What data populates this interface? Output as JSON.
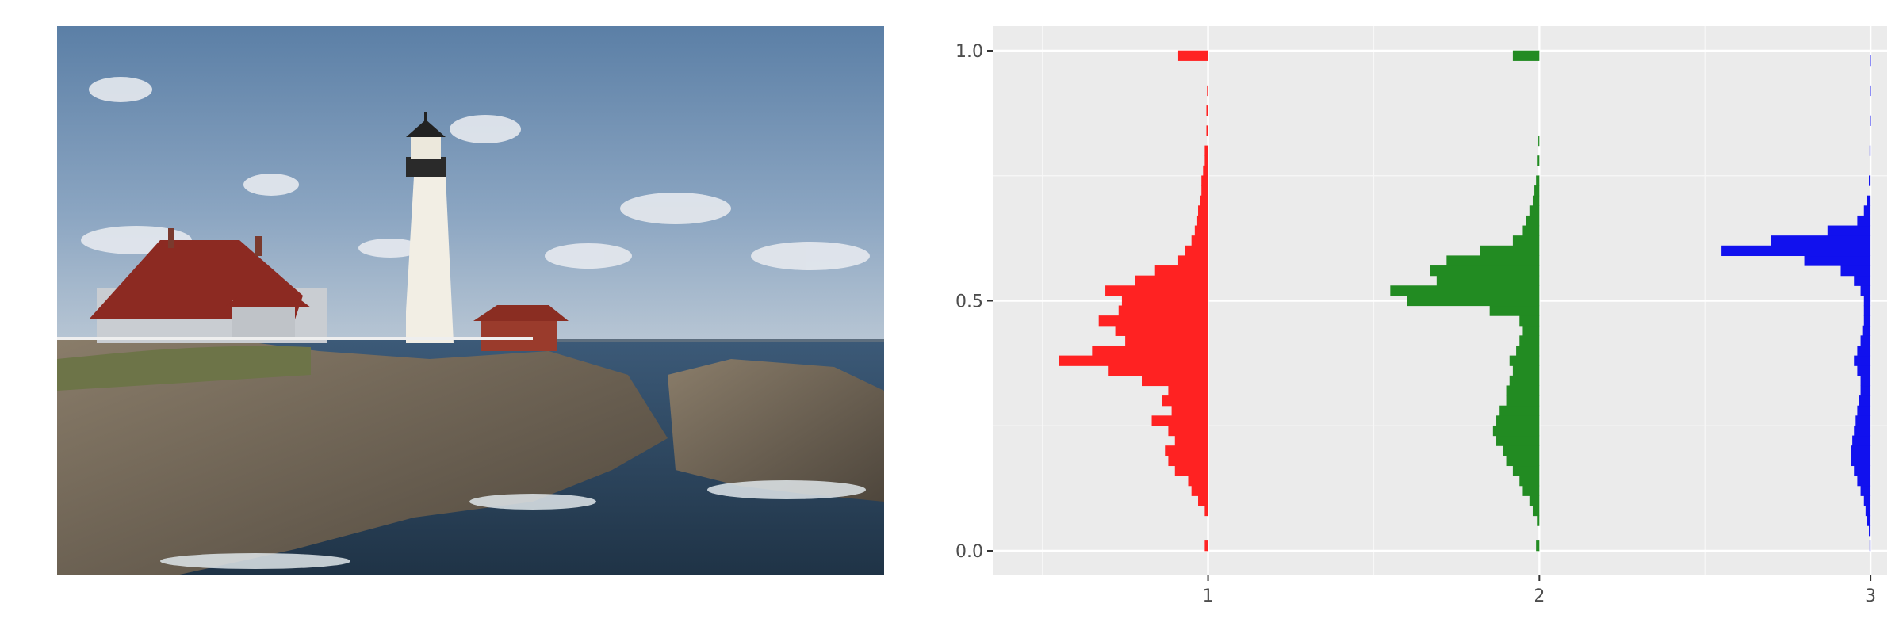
{
  "photo": {
    "subject": "Lighthouse on a rocky coast with red-roofed keeper's house, sky with clouds and sea"
  },
  "chart_data": {
    "type": "bar",
    "orientation": "horizontal",
    "description": "Per-channel intensity histograms (R, G, B) drawn as horizontal bars pointing left from channel baselines 1, 2, 3",
    "x_ticks": [
      "1",
      "2",
      "3"
    ],
    "y_ticks": [
      "0.0",
      "0.5",
      "1.0"
    ],
    "ylim": [
      0,
      1
    ],
    "grid": true,
    "panel_background": "#ebebeb",
    "series": [
      {
        "channel": 1,
        "color": "#ff2222",
        "bins": [
          {
            "y": 0.01,
            "len": 0.01
          },
          {
            "y": 0.08,
            "len": 0.01
          },
          {
            "y": 0.1,
            "len": 0.03
          },
          {
            "y": 0.12,
            "len": 0.05
          },
          {
            "y": 0.14,
            "len": 0.06
          },
          {
            "y": 0.16,
            "len": 0.1
          },
          {
            "y": 0.18,
            "len": 0.12
          },
          {
            "y": 0.2,
            "len": 0.13
          },
          {
            "y": 0.22,
            "len": 0.1
          },
          {
            "y": 0.24,
            "len": 0.12
          },
          {
            "y": 0.26,
            "len": 0.17
          },
          {
            "y": 0.28,
            "len": 0.11
          },
          {
            "y": 0.3,
            "len": 0.14
          },
          {
            "y": 0.32,
            "len": 0.12
          },
          {
            "y": 0.34,
            "len": 0.2
          },
          {
            "y": 0.36,
            "len": 0.3
          },
          {
            "y": 0.38,
            "len": 0.45
          },
          {
            "y": 0.4,
            "len": 0.35
          },
          {
            "y": 0.42,
            "len": 0.25
          },
          {
            "y": 0.44,
            "len": 0.28
          },
          {
            "y": 0.46,
            "len": 0.33
          },
          {
            "y": 0.48,
            "len": 0.27
          },
          {
            "y": 0.5,
            "len": 0.26
          },
          {
            "y": 0.52,
            "len": 0.31
          },
          {
            "y": 0.54,
            "len": 0.22
          },
          {
            "y": 0.56,
            "len": 0.16
          },
          {
            "y": 0.58,
            "len": 0.09
          },
          {
            "y": 0.6,
            "len": 0.07
          },
          {
            "y": 0.62,
            "len": 0.05
          },
          {
            "y": 0.64,
            "len": 0.04
          },
          {
            "y": 0.66,
            "len": 0.035
          },
          {
            "y": 0.68,
            "len": 0.03
          },
          {
            "y": 0.7,
            "len": 0.025
          },
          {
            "y": 0.72,
            "len": 0.02
          },
          {
            "y": 0.74,
            "len": 0.02
          },
          {
            "y": 0.76,
            "len": 0.015
          },
          {
            "y": 0.78,
            "len": 0.01
          },
          {
            "y": 0.8,
            "len": 0.01
          },
          {
            "y": 0.84,
            "len": 0.005
          },
          {
            "y": 0.88,
            "len": 0.005
          },
          {
            "y": 0.92,
            "len": 0.003
          },
          {
            "y": 0.99,
            "len": 0.09
          }
        ]
      },
      {
        "channel": 2,
        "color": "#228b22",
        "bins": [
          {
            "y": 0.01,
            "len": 0.01
          },
          {
            "y": 0.06,
            "len": 0.005
          },
          {
            "y": 0.08,
            "len": 0.02
          },
          {
            "y": 0.1,
            "len": 0.03
          },
          {
            "y": 0.12,
            "len": 0.05
          },
          {
            "y": 0.14,
            "len": 0.06
          },
          {
            "y": 0.16,
            "len": 0.08
          },
          {
            "y": 0.18,
            "len": 0.1
          },
          {
            "y": 0.2,
            "len": 0.11
          },
          {
            "y": 0.22,
            "len": 0.13
          },
          {
            "y": 0.24,
            "len": 0.14
          },
          {
            "y": 0.26,
            "len": 0.13
          },
          {
            "y": 0.28,
            "len": 0.12
          },
          {
            "y": 0.3,
            "len": 0.1
          },
          {
            "y": 0.32,
            "len": 0.1
          },
          {
            "y": 0.34,
            "len": 0.09
          },
          {
            "y": 0.36,
            "len": 0.08
          },
          {
            "y": 0.38,
            "len": 0.09
          },
          {
            "y": 0.4,
            "len": 0.07
          },
          {
            "y": 0.42,
            "len": 0.06
          },
          {
            "y": 0.44,
            "len": 0.05
          },
          {
            "y": 0.46,
            "len": 0.06
          },
          {
            "y": 0.48,
            "len": 0.15
          },
          {
            "y": 0.5,
            "len": 0.4
          },
          {
            "y": 0.52,
            "len": 0.45
          },
          {
            "y": 0.54,
            "len": 0.31
          },
          {
            "y": 0.56,
            "len": 0.33
          },
          {
            "y": 0.58,
            "len": 0.28
          },
          {
            "y": 0.6,
            "len": 0.18
          },
          {
            "y": 0.62,
            "len": 0.08
          },
          {
            "y": 0.64,
            "len": 0.05
          },
          {
            "y": 0.66,
            "len": 0.04
          },
          {
            "y": 0.68,
            "len": 0.03
          },
          {
            "y": 0.7,
            "len": 0.02
          },
          {
            "y": 0.72,
            "len": 0.015
          },
          {
            "y": 0.74,
            "len": 0.01
          },
          {
            "y": 0.78,
            "len": 0.005
          },
          {
            "y": 0.82,
            "len": 0.003
          },
          {
            "y": 0.99,
            "len": 0.08
          }
        ]
      },
      {
        "channel": 3,
        "color": "#1111ee",
        "bins": [
          {
            "y": 0.01,
            "len": 0.003
          },
          {
            "y": 0.04,
            "len": 0.005
          },
          {
            "y": 0.06,
            "len": 0.01
          },
          {
            "y": 0.08,
            "len": 0.015
          },
          {
            "y": 0.1,
            "len": 0.02
          },
          {
            "y": 0.12,
            "len": 0.03
          },
          {
            "y": 0.14,
            "len": 0.04
          },
          {
            "y": 0.16,
            "len": 0.05
          },
          {
            "y": 0.18,
            "len": 0.06
          },
          {
            "y": 0.2,
            "len": 0.06
          },
          {
            "y": 0.22,
            "len": 0.055
          },
          {
            "y": 0.24,
            "len": 0.05
          },
          {
            "y": 0.26,
            "len": 0.045
          },
          {
            "y": 0.28,
            "len": 0.04
          },
          {
            "y": 0.3,
            "len": 0.035
          },
          {
            "y": 0.32,
            "len": 0.03
          },
          {
            "y": 0.34,
            "len": 0.03
          },
          {
            "y": 0.36,
            "len": 0.04
          },
          {
            "y": 0.38,
            "len": 0.05
          },
          {
            "y": 0.4,
            "len": 0.04
          },
          {
            "y": 0.42,
            "len": 0.03
          },
          {
            "y": 0.44,
            "len": 0.025
          },
          {
            "y": 0.46,
            "len": 0.02
          },
          {
            "y": 0.48,
            "len": 0.02
          },
          {
            "y": 0.5,
            "len": 0.02
          },
          {
            "y": 0.52,
            "len": 0.03
          },
          {
            "y": 0.54,
            "len": 0.05
          },
          {
            "y": 0.56,
            "len": 0.09
          },
          {
            "y": 0.58,
            "len": 0.2
          },
          {
            "y": 0.6,
            "len": 0.45
          },
          {
            "y": 0.62,
            "len": 0.3
          },
          {
            "y": 0.64,
            "len": 0.13
          },
          {
            "y": 0.66,
            "len": 0.04
          },
          {
            "y": 0.68,
            "len": 0.02
          },
          {
            "y": 0.7,
            "len": 0.01
          },
          {
            "y": 0.74,
            "len": 0.005
          },
          {
            "y": 0.8,
            "len": 0.003
          },
          {
            "y": 0.86,
            "len": 0.002
          },
          {
            "y": 0.92,
            "len": 0.002
          },
          {
            "y": 0.98,
            "len": 0.002
          }
        ]
      }
    ]
  }
}
